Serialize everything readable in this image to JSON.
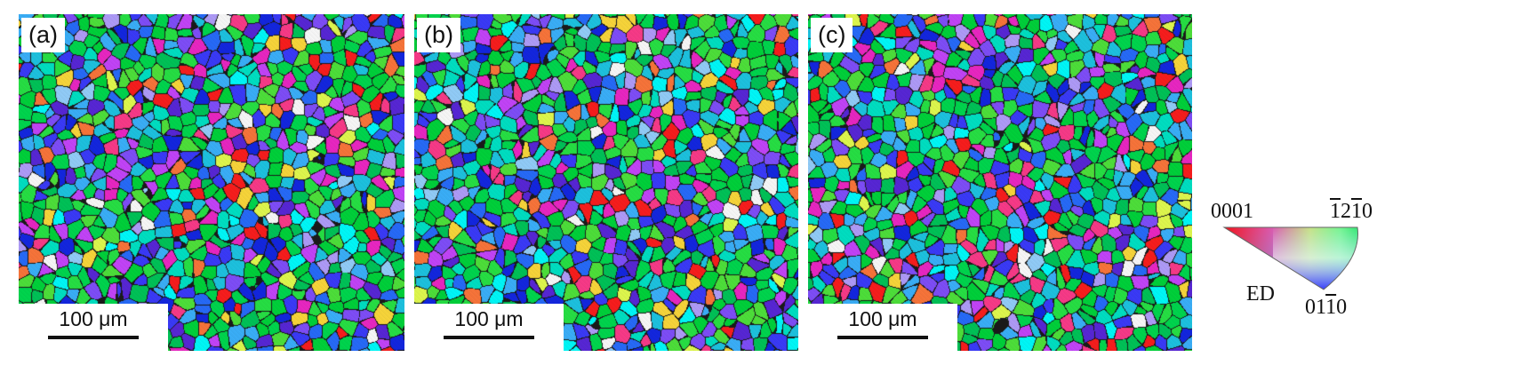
{
  "panels": [
    {
      "label": "(a)",
      "scale_bar": "100 μm"
    },
    {
      "label": "(b)",
      "scale_bar": "100 μm"
    },
    {
      "label": "(c)",
      "scale_bar": "100 μm"
    }
  ],
  "legend": {
    "corner_0001": "0001",
    "corner_1210_overbar_1": "1",
    "corner_1210_plain_2": "2",
    "corner_1210_overbar_1b": "1",
    "corner_1210_plain_0": "0",
    "corner_0110_plain_01": "01",
    "corner_0110_overbar_1": "1",
    "corner_0110_plain_0": "0",
    "direction": "ED"
  },
  "colors": {
    "basal": "#ff0000",
    "prism_1210": "#00e000",
    "prism_0110": "#1010ff",
    "boundary": "#1a1a1a"
  }
}
